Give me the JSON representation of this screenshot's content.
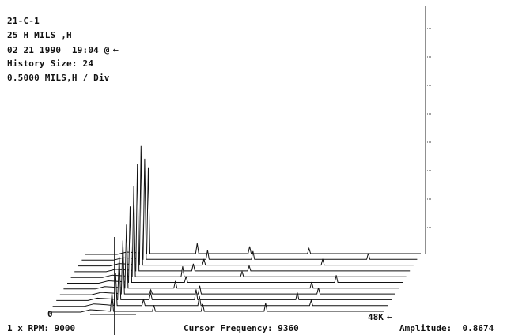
{
  "header": {
    "line1": "21-C-1",
    "line2": "25 H MILS ,H",
    "line3": "02 21 1990  19:04 @",
    "line3_marker": "←",
    "line4": "History Size: 24",
    "line5": "0.5000 MILS,H / Div"
  },
  "footer": {
    "rpm_label": "1 x RPM: 9000",
    "cursor_label": "Cursor Frequency: 9360",
    "amplitude_label": "Amplitude:  0.8674"
  },
  "chart_data": {
    "type": "line",
    "title": "",
    "xlabel": "",
    "ylabel": "",
    "x_range": [
      "0",
      "48K"
    ],
    "x_tick_labels": [
      "0",
      "48K"
    ],
    "front_trace_marker": "←",
    "y_axis_ticks": 8,
    "grid": false,
    "cursor_frequency": 9360,
    "amplitude": 0.8674,
    "traces_drawn": 11,
    "series": [
      {
        "peaks": [
          [
            9000,
            0.9
          ],
          [
            15000,
            0.3
          ],
          [
            22000,
            0.35
          ],
          [
            31000,
            0.4
          ]
        ]
      },
      {
        "peaks": [
          [
            9000,
            1.6
          ],
          [
            13000,
            0.3
          ],
          [
            21000,
            0.45
          ],
          [
            37000,
            0.25
          ]
        ]
      },
      {
        "peaks": [
          [
            9000,
            2.1
          ],
          [
            13500,
            0.35
          ],
          [
            20000,
            0.5
          ],
          [
            34500,
            0.35
          ]
        ]
      },
      {
        "peaks": [
          [
            9000,
            2.6
          ],
          [
            13000,
            0.2
          ],
          [
            20000,
            0.4
          ],
          [
            37000,
            0.3
          ]
        ]
      },
      {
        "peaks": [
          [
            9000,
            3.1
          ],
          [
            16000,
            0.35
          ],
          [
            35500,
            0.3
          ]
        ]
      },
      {
        "peaks": [
          [
            9000,
            3.7
          ],
          [
            17000,
            0.3
          ],
          [
            38500,
            0.35
          ]
        ]
      },
      {
        "peaks": [
          [
            9000,
            4.4
          ],
          [
            16000,
            0.5
          ],
          [
            24500,
            0.25
          ]
        ]
      },
      {
        "peaks": [
          [
            9000,
            5.2
          ],
          [
            17000,
            0.35
          ],
          [
            25000,
            0.25
          ]
        ]
      },
      {
        "peaks": [
          [
            9000,
            5.8
          ],
          [
            18000,
            0.3
          ],
          [
            35000,
            0.3
          ]
        ]
      },
      {
        "peaks": [
          [
            9000,
            4.9
          ],
          [
            18000,
            0.45
          ],
          [
            24500,
            0.4
          ],
          [
            41000,
            0.3
          ]
        ]
      },
      {
        "peaks": [
          [
            9000,
            4.2
          ],
          [
            16000,
            0.5
          ],
          [
            23500,
            0.35
          ],
          [
            32000,
            0.25
          ]
        ]
      }
    ]
  }
}
